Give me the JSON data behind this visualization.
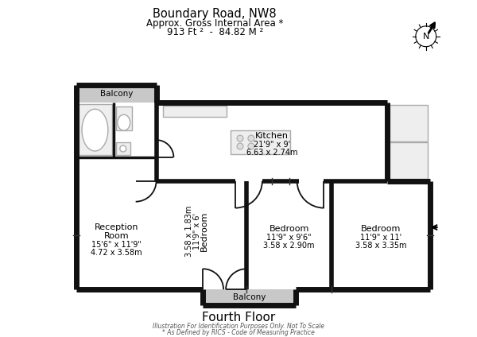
{
  "title_line1": "Boundary Road, NW8",
  "title_line2": "Approx. Gross Internal Area *",
  "title_line3": "913 Ft ²  -  84.82 M ²",
  "floor_label": "Fourth Floor",
  "footnote1": "Illustration For Identification Purposes Only. Not To Scale",
  "footnote2": "* As Defined by RICS - Code of Measuring Practice",
  "bg_color": "#ffffff",
  "wall_color": "#111111",
  "balcony_fill": "#c8c8c8",
  "title_color": "#000000",
  "sub_color": "#444444",
  "key_coords": {
    "xL": 95,
    "xBathDiv": 142,
    "xBathR": 196,
    "xBed1R": 310,
    "xBed2R": 418,
    "xNotchL": 488,
    "xR": 542,
    "yTOP": 294,
    "yBalTopT": 316,
    "yBathFloor": 225,
    "yKitDiv": 195,
    "yBOT": 58,
    "yBal2B": 38,
    "xBal2L": 255,
    "xBal2R": 372
  }
}
